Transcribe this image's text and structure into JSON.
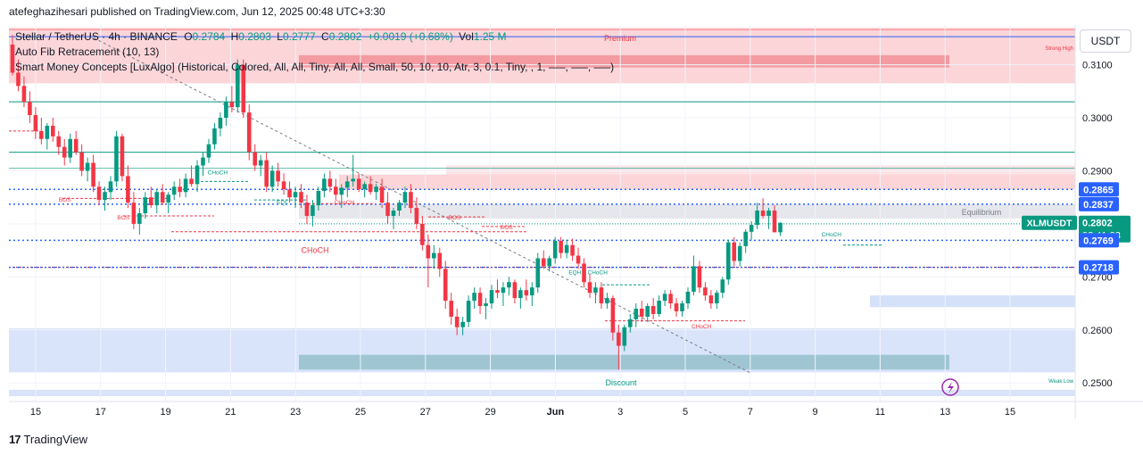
{
  "publisher": "atefeghazihesari published on TradingView.com, Jun 12, 2025 00:48 UTC+3:30",
  "legend": {
    "symbol": "Stellar / TetherUS · 4h · BINANCE",
    "o_label": "O",
    "o_value": "0.2784",
    "h_label": "H",
    "h_value": "0.2803",
    "l_label": "L",
    "l_value": "0.2777",
    "c_label": "C",
    "c_value": "0.2802",
    "change": "+0.0019 (+0.68%)",
    "vol_label": "Vol",
    "vol_value": "1.25 M",
    "indicator_1": "Auto Fib Retracement (10, 13)",
    "indicator_2": "Smart Money Concepts [LuxAlgo] (Historical, Colored, All, All, Tiny, All, All, Small, 50, 10, 10, Atr, 3, 0.1, Tiny, , 1, —–, —–, —–)"
  },
  "quote_currency": "USDT",
  "logo_text": "TradingView",
  "colors": {
    "up": "#089981",
    "down": "#f23645",
    "premium": "#f7a1a8",
    "discount": "#b9cdf5",
    "level_blue": "#2962ff"
  },
  "chart_data": {
    "type": "candlestick",
    "interval": "4h",
    "x_ticks": [
      "15",
      "17",
      "19",
      "21",
      "23",
      "25",
      "27",
      "29",
      "Jun",
      "3",
      "5",
      "7",
      "9",
      "11",
      "13",
      "15"
    ],
    "y_ticks": [
      "0.3100",
      "0.3000",
      "0.2900",
      "0.2700",
      "0.2600",
      "0.2500"
    ],
    "ylim": [
      0.2465,
      0.3175
    ],
    "price_labels": [
      {
        "text": "0.2865",
        "value": 0.2865
      },
      {
        "text": "0.2837",
        "value": 0.2837
      },
      {
        "text": "0.2769",
        "value": 0.2769
      },
      {
        "text": "0.2718",
        "value": 0.2718
      }
    ],
    "last_price": {
      "symbol": "XLMUSDT",
      "value": 0.2802,
      "text": "0.2802",
      "countdown": "02:41:23"
    },
    "zone_labels": {
      "premium": "Premium",
      "equilibrium": "Equilibrium",
      "discount": "Discount",
      "strong_high": "Strong High",
      "weak_low": "Weak Low"
    },
    "structure_labels": [
      {
        "text": "BOS",
        "day": 15.9,
        "value": 0.2837,
        "kind": "bos-down"
      },
      {
        "text": "BOS",
        "day": 17.7,
        "value": 0.2803,
        "kind": "bos-down"
      },
      {
        "text": "CHoCH",
        "day": 20.6,
        "value": 0.2888,
        "kind": "choch-up"
      },
      {
        "text": "EQL",
        "day": 22.6,
        "value": 0.2832,
        "kind": "eql"
      },
      {
        "text": "CHoCH",
        "day": 24.5,
        "value": 0.2832,
        "kind": "choch-down"
      },
      {
        "text": "BOS",
        "day": 27.9,
        "value": 0.2803,
        "kind": "bos-down"
      },
      {
        "text": "BOS",
        "day": 29.5,
        "value": 0.2785,
        "kind": "bos-down"
      },
      {
        "text": "CHoCH",
        "day": 23.6,
        "value": 0.274,
        "kind": "choch-big"
      },
      {
        "text": "EQH",
        "day": 31.6,
        "value": 0.27,
        "kind": "eqh"
      },
      {
        "text": "CHoCH",
        "day": 32.3,
        "value": 0.27,
        "kind": "choch-up"
      },
      {
        "text": "CHoCH",
        "day": 35.5,
        "value": 0.2598,
        "kind": "choch-down"
      },
      {
        "text": "CHoCH",
        "day": 39.5,
        "value": 0.2771,
        "kind": "choch-up"
      }
    ],
    "candles": [
      [
        0.3138,
        0.3156,
        0.308,
        0.3085
      ],
      [
        0.3085,
        0.311,
        0.305,
        0.306
      ],
      [
        0.306,
        0.3078,
        0.302,
        0.303
      ],
      [
        0.303,
        0.305,
        0.299,
        0.3005
      ],
      [
        0.3005,
        0.302,
        0.296,
        0.2975
      ],
      [
        0.2975,
        0.3,
        0.295,
        0.296
      ],
      [
        0.296,
        0.299,
        0.294,
        0.2985
      ],
      [
        0.2985,
        0.3,
        0.2955,
        0.2965
      ],
      [
        0.2965,
        0.2975,
        0.293,
        0.2945
      ],
      [
        0.2945,
        0.296,
        0.291,
        0.2925
      ],
      [
        0.2925,
        0.297,
        0.2915,
        0.296
      ],
      [
        0.296,
        0.2975,
        0.293,
        0.2935
      ],
      [
        0.2935,
        0.295,
        0.289,
        0.29
      ],
      [
        0.29,
        0.2925,
        0.288,
        0.2915
      ],
      [
        0.2915,
        0.293,
        0.286,
        0.287
      ],
      [
        0.287,
        0.288,
        0.2835,
        0.2845
      ],
      [
        0.2845,
        0.287,
        0.2825,
        0.286
      ],
      [
        0.286,
        0.289,
        0.2845,
        0.288
      ],
      [
        0.288,
        0.2975,
        0.287,
        0.2965
      ],
      [
        0.2965,
        0.297,
        0.288,
        0.289
      ],
      [
        0.289,
        0.291,
        0.283,
        0.284
      ],
      [
        0.284,
        0.286,
        0.279,
        0.28
      ],
      [
        0.28,
        0.283,
        0.278,
        0.282
      ],
      [
        0.282,
        0.286,
        0.281,
        0.285
      ],
      [
        0.285,
        0.287,
        0.283,
        0.2835
      ],
      [
        0.2835,
        0.2865,
        0.282,
        0.286
      ],
      [
        0.286,
        0.2875,
        0.2835,
        0.284
      ],
      [
        0.284,
        0.286,
        0.282,
        0.2855
      ],
      [
        0.2855,
        0.288,
        0.2845,
        0.287
      ],
      [
        0.287,
        0.2885,
        0.285,
        0.286
      ],
      [
        0.286,
        0.2895,
        0.285,
        0.2885
      ],
      [
        0.2885,
        0.291,
        0.287,
        0.2875
      ],
      [
        0.2875,
        0.292,
        0.286,
        0.291
      ],
      [
        0.291,
        0.2935,
        0.289,
        0.2925
      ],
      [
        0.2925,
        0.296,
        0.2915,
        0.295
      ],
      [
        0.295,
        0.299,
        0.294,
        0.298
      ],
      [
        0.298,
        0.301,
        0.2965,
        0.3
      ],
      [
        0.3,
        0.304,
        0.2985,
        0.303
      ],
      [
        0.303,
        0.306,
        0.301,
        0.302
      ],
      [
        0.302,
        0.311,
        0.301,
        0.31
      ],
      [
        0.31,
        0.311,
        0.3,
        0.301
      ],
      [
        0.301,
        0.3025,
        0.292,
        0.2935
      ],
      [
        0.2935,
        0.295,
        0.29,
        0.291
      ],
      [
        0.291,
        0.293,
        0.289,
        0.292
      ],
      [
        0.292,
        0.2935,
        0.286,
        0.287
      ],
      [
        0.287,
        0.291,
        0.286,
        0.29
      ],
      [
        0.29,
        0.2915,
        0.287,
        0.288
      ],
      [
        0.288,
        0.2895,
        0.2855,
        0.2865
      ],
      [
        0.2865,
        0.288,
        0.284,
        0.285
      ],
      [
        0.285,
        0.287,
        0.283,
        0.286
      ],
      [
        0.286,
        0.2875,
        0.283,
        0.284
      ],
      [
        0.284,
        0.2855,
        0.28,
        0.2815
      ],
      [
        0.2815,
        0.2845,
        0.2795,
        0.2835
      ],
      [
        0.2835,
        0.287,
        0.2825,
        0.2862
      ],
      [
        0.2862,
        0.2895,
        0.285,
        0.2885
      ],
      [
        0.2885,
        0.29,
        0.286,
        0.287
      ],
      [
        0.287,
        0.2885,
        0.2845,
        0.2855
      ],
      [
        0.2855,
        0.2875,
        0.283,
        0.2868
      ],
      [
        0.2868,
        0.289,
        0.285,
        0.288
      ],
      [
        0.288,
        0.293,
        0.287,
        0.2885
      ],
      [
        0.2885,
        0.2895,
        0.286,
        0.2865
      ],
      [
        0.2865,
        0.288,
        0.285,
        0.2875
      ],
      [
        0.2875,
        0.289,
        0.2855,
        0.286
      ],
      [
        0.286,
        0.2875,
        0.2845,
        0.287
      ],
      [
        0.287,
        0.2885,
        0.283,
        0.284
      ],
      [
        0.284,
        0.286,
        0.28,
        0.2815
      ],
      [
        0.2815,
        0.283,
        0.279,
        0.2825
      ],
      [
        0.2825,
        0.2845,
        0.2815,
        0.284
      ],
      [
        0.284,
        0.287,
        0.283,
        0.286
      ],
      [
        0.286,
        0.2875,
        0.282,
        0.283
      ],
      [
        0.283,
        0.285,
        0.279,
        0.28
      ],
      [
        0.28,
        0.2815,
        0.275,
        0.276
      ],
      [
        0.276,
        0.278,
        0.268,
        0.2735
      ],
      [
        0.2735,
        0.276,
        0.2715,
        0.2745
      ],
      [
        0.2745,
        0.2755,
        0.27,
        0.2715
      ],
      [
        0.2715,
        0.273,
        0.264,
        0.2655
      ],
      [
        0.2655,
        0.267,
        0.261,
        0.2625
      ],
      [
        0.2625,
        0.264,
        0.259,
        0.2605
      ],
      [
        0.2605,
        0.2625,
        0.259,
        0.2615
      ],
      [
        0.2615,
        0.2665,
        0.2605,
        0.2655
      ],
      [
        0.2655,
        0.268,
        0.264,
        0.267
      ],
      [
        0.267,
        0.268,
        0.263,
        0.2645
      ],
      [
        0.2645,
        0.266,
        0.262,
        0.265
      ],
      [
        0.265,
        0.2685,
        0.264,
        0.2675
      ],
      [
        0.2675,
        0.2695,
        0.266,
        0.267
      ],
      [
        0.267,
        0.269,
        0.2645,
        0.268
      ],
      [
        0.268,
        0.27,
        0.2665,
        0.269
      ],
      [
        0.269,
        0.2695,
        0.265,
        0.266
      ],
      [
        0.266,
        0.268,
        0.264,
        0.2675
      ],
      [
        0.2675,
        0.2695,
        0.2655,
        0.2665
      ],
      [
        0.2665,
        0.269,
        0.2645,
        0.268
      ],
      [
        0.268,
        0.2745,
        0.267,
        0.2735
      ],
      [
        0.2735,
        0.275,
        0.2715,
        0.272
      ],
      [
        0.272,
        0.274,
        0.271,
        0.2735
      ],
      [
        0.2735,
        0.2775,
        0.2725,
        0.2768
      ],
      [
        0.2768,
        0.2775,
        0.2735,
        0.2745
      ],
      [
        0.2745,
        0.277,
        0.2735,
        0.276
      ],
      [
        0.276,
        0.2772,
        0.273,
        0.274
      ],
      [
        0.274,
        0.2755,
        0.2715,
        0.2725
      ],
      [
        0.2725,
        0.2735,
        0.268,
        0.269
      ],
      [
        0.269,
        0.2705,
        0.266,
        0.267
      ],
      [
        0.267,
        0.269,
        0.265,
        0.268
      ],
      [
        0.268,
        0.269,
        0.264,
        0.265
      ],
      [
        0.265,
        0.267,
        0.264,
        0.266
      ],
      [
        0.266,
        0.2665,
        0.258,
        0.2595
      ],
      [
        0.2595,
        0.261,
        0.2525,
        0.257
      ],
      [
        0.257,
        0.261,
        0.256,
        0.2605
      ],
      [
        0.2605,
        0.263,
        0.2595,
        0.262
      ],
      [
        0.262,
        0.265,
        0.2605,
        0.264
      ],
      [
        0.264,
        0.2655,
        0.2615,
        0.2625
      ],
      [
        0.2625,
        0.265,
        0.2615,
        0.2645
      ],
      [
        0.2645,
        0.266,
        0.262,
        0.263
      ],
      [
        0.263,
        0.2665,
        0.2625,
        0.2655
      ],
      [
        0.2655,
        0.2675,
        0.2645,
        0.2668
      ],
      [
        0.2668,
        0.2675,
        0.264,
        0.265
      ],
      [
        0.265,
        0.266,
        0.2625,
        0.2635
      ],
      [
        0.2635,
        0.2655,
        0.2625,
        0.265
      ],
      [
        0.265,
        0.268,
        0.264,
        0.2672
      ],
      [
        0.2672,
        0.274,
        0.2665,
        0.272
      ],
      [
        0.272,
        0.273,
        0.267,
        0.268
      ],
      [
        0.268,
        0.269,
        0.2655,
        0.2665
      ],
      [
        0.2665,
        0.2675,
        0.264,
        0.265
      ],
      [
        0.265,
        0.2675,
        0.264,
        0.267
      ],
      [
        0.267,
        0.27,
        0.266,
        0.2695
      ],
      [
        0.2695,
        0.277,
        0.2685,
        0.2765
      ],
      [
        0.2765,
        0.2775,
        0.272,
        0.273
      ],
      [
        0.273,
        0.2765,
        0.272,
        0.2758
      ],
      [
        0.2758,
        0.279,
        0.2745,
        0.2785
      ],
      [
        0.2785,
        0.2805,
        0.277,
        0.2798
      ],
      [
        0.2798,
        0.284,
        0.279,
        0.2825
      ],
      [
        0.2825,
        0.2848,
        0.281,
        0.2815
      ],
      [
        0.2815,
        0.283,
        0.279,
        0.2825
      ],
      [
        0.2825,
        0.2835,
        0.279,
        0.2784
      ],
      [
        0.2784,
        0.2803,
        0.2777,
        0.2802
      ]
    ]
  }
}
